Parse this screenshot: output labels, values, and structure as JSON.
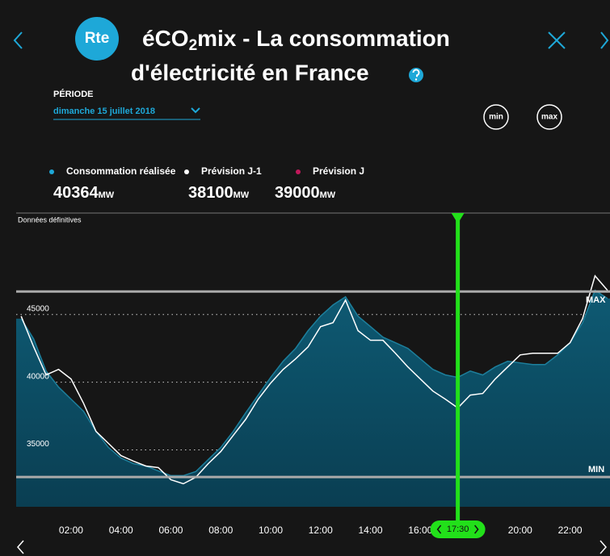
{
  "header": {
    "logo": "Rte",
    "title_prefix": "éCO",
    "title_subscript": "2",
    "title_rest": "mix - La consommation",
    "title_line2": "d'électricité en France",
    "period_label": "PÉRIODE",
    "period_value": "dimanche 15 juillet 2018",
    "btn_min": "min",
    "btn_max": "max"
  },
  "readout": [
    {
      "name": "Consommation réalisée",
      "color": "#1ea8d8",
      "value": "40364",
      "unit": "MW"
    },
    {
      "name": "Prévision J-1",
      "color": "#ffffff",
      "value": "38100",
      "unit": "MW"
    },
    {
      "name": "Prévision J",
      "color": "#c2185b",
      "value": "39000",
      "unit": "MW"
    }
  ],
  "chart_data": {
    "type": "area",
    "note": "Données définitives",
    "x": [
      0,
      0.5,
      1,
      1.5,
      2,
      2.5,
      3,
      3.5,
      4,
      4.5,
      5,
      5.5,
      6,
      6.5,
      7,
      7.5,
      8,
      8.5,
      9,
      9.5,
      10,
      10.5,
      11,
      11.5,
      12,
      12.5,
      13,
      13.5,
      14,
      14.5,
      15,
      15.5,
      16,
      16.5,
      17,
      17.5,
      18,
      18.5,
      19,
      19.5,
      20,
      20.5,
      21,
      21.5,
      22,
      22.5,
      23,
      23.5
    ],
    "series": [
      {
        "color": "#0e5a73",
        "values": [
          44700,
          43200,
          40830,
          39640,
          38750,
          37860,
          36370,
          35180,
          34400,
          33990,
          33810,
          33450,
          33100,
          33100,
          33400,
          34290,
          35180,
          36370,
          37740,
          39050,
          40360,
          41550,
          42500,
          43810,
          44880,
          45710,
          46310,
          44880,
          44110,
          43330,
          42920,
          42500,
          41730,
          40950,
          40540,
          40364,
          40830,
          40540,
          41130,
          41550,
          41430,
          41310,
          41310,
          42020,
          42920,
          44400,
          46790,
          46190
        ]
      },
      {
        "color": "#ffffff",
        "values": [
          44880,
          42620,
          40540,
          40950,
          40240,
          38450,
          36370,
          35480,
          34580,
          34170,
          33810,
          33690,
          32800,
          32500,
          32980,
          33990,
          34880,
          36070,
          37260,
          38750,
          39940,
          40950,
          41730,
          42620,
          44110,
          44400,
          46070,
          43810,
          43100,
          43100,
          42140,
          41130,
          40240,
          39350,
          38750,
          38100,
          39050,
          39170,
          40240,
          41130,
          42020,
          42140,
          42140,
          42140,
          42920,
          44700,
          47860,
          46790
        ]
      }
    ],
    "xlim": [
      -0.2,
      23.6
    ],
    "xticks": [
      {
        "value": 2,
        "label": "02:00"
      },
      {
        "value": 4,
        "label": "04:00"
      },
      {
        "value": 6,
        "label": "06:00"
      },
      {
        "value": 8,
        "label": "08:00"
      },
      {
        "value": 10,
        "label": "10:00"
      },
      {
        "value": 12,
        "label": "12:00"
      },
      {
        "value": 14,
        "label": "14:00"
      },
      {
        "value": 16,
        "label": "16:00"
      },
      {
        "value": 20,
        "label": "20:00"
      },
      {
        "value": 22,
        "label": "22:00"
      }
    ],
    "ylim": [
      30800,
      52500
    ],
    "yticks": [
      35000,
      40000,
      45000
    ],
    "grid": true,
    "max_line": {
      "value": 46700,
      "label": "MAX"
    },
    "min_line": {
      "value": 33000,
      "label": "MIN"
    },
    "cursor": {
      "value": 17.5,
      "label": "17:30",
      "color": "#22e01a"
    }
  }
}
